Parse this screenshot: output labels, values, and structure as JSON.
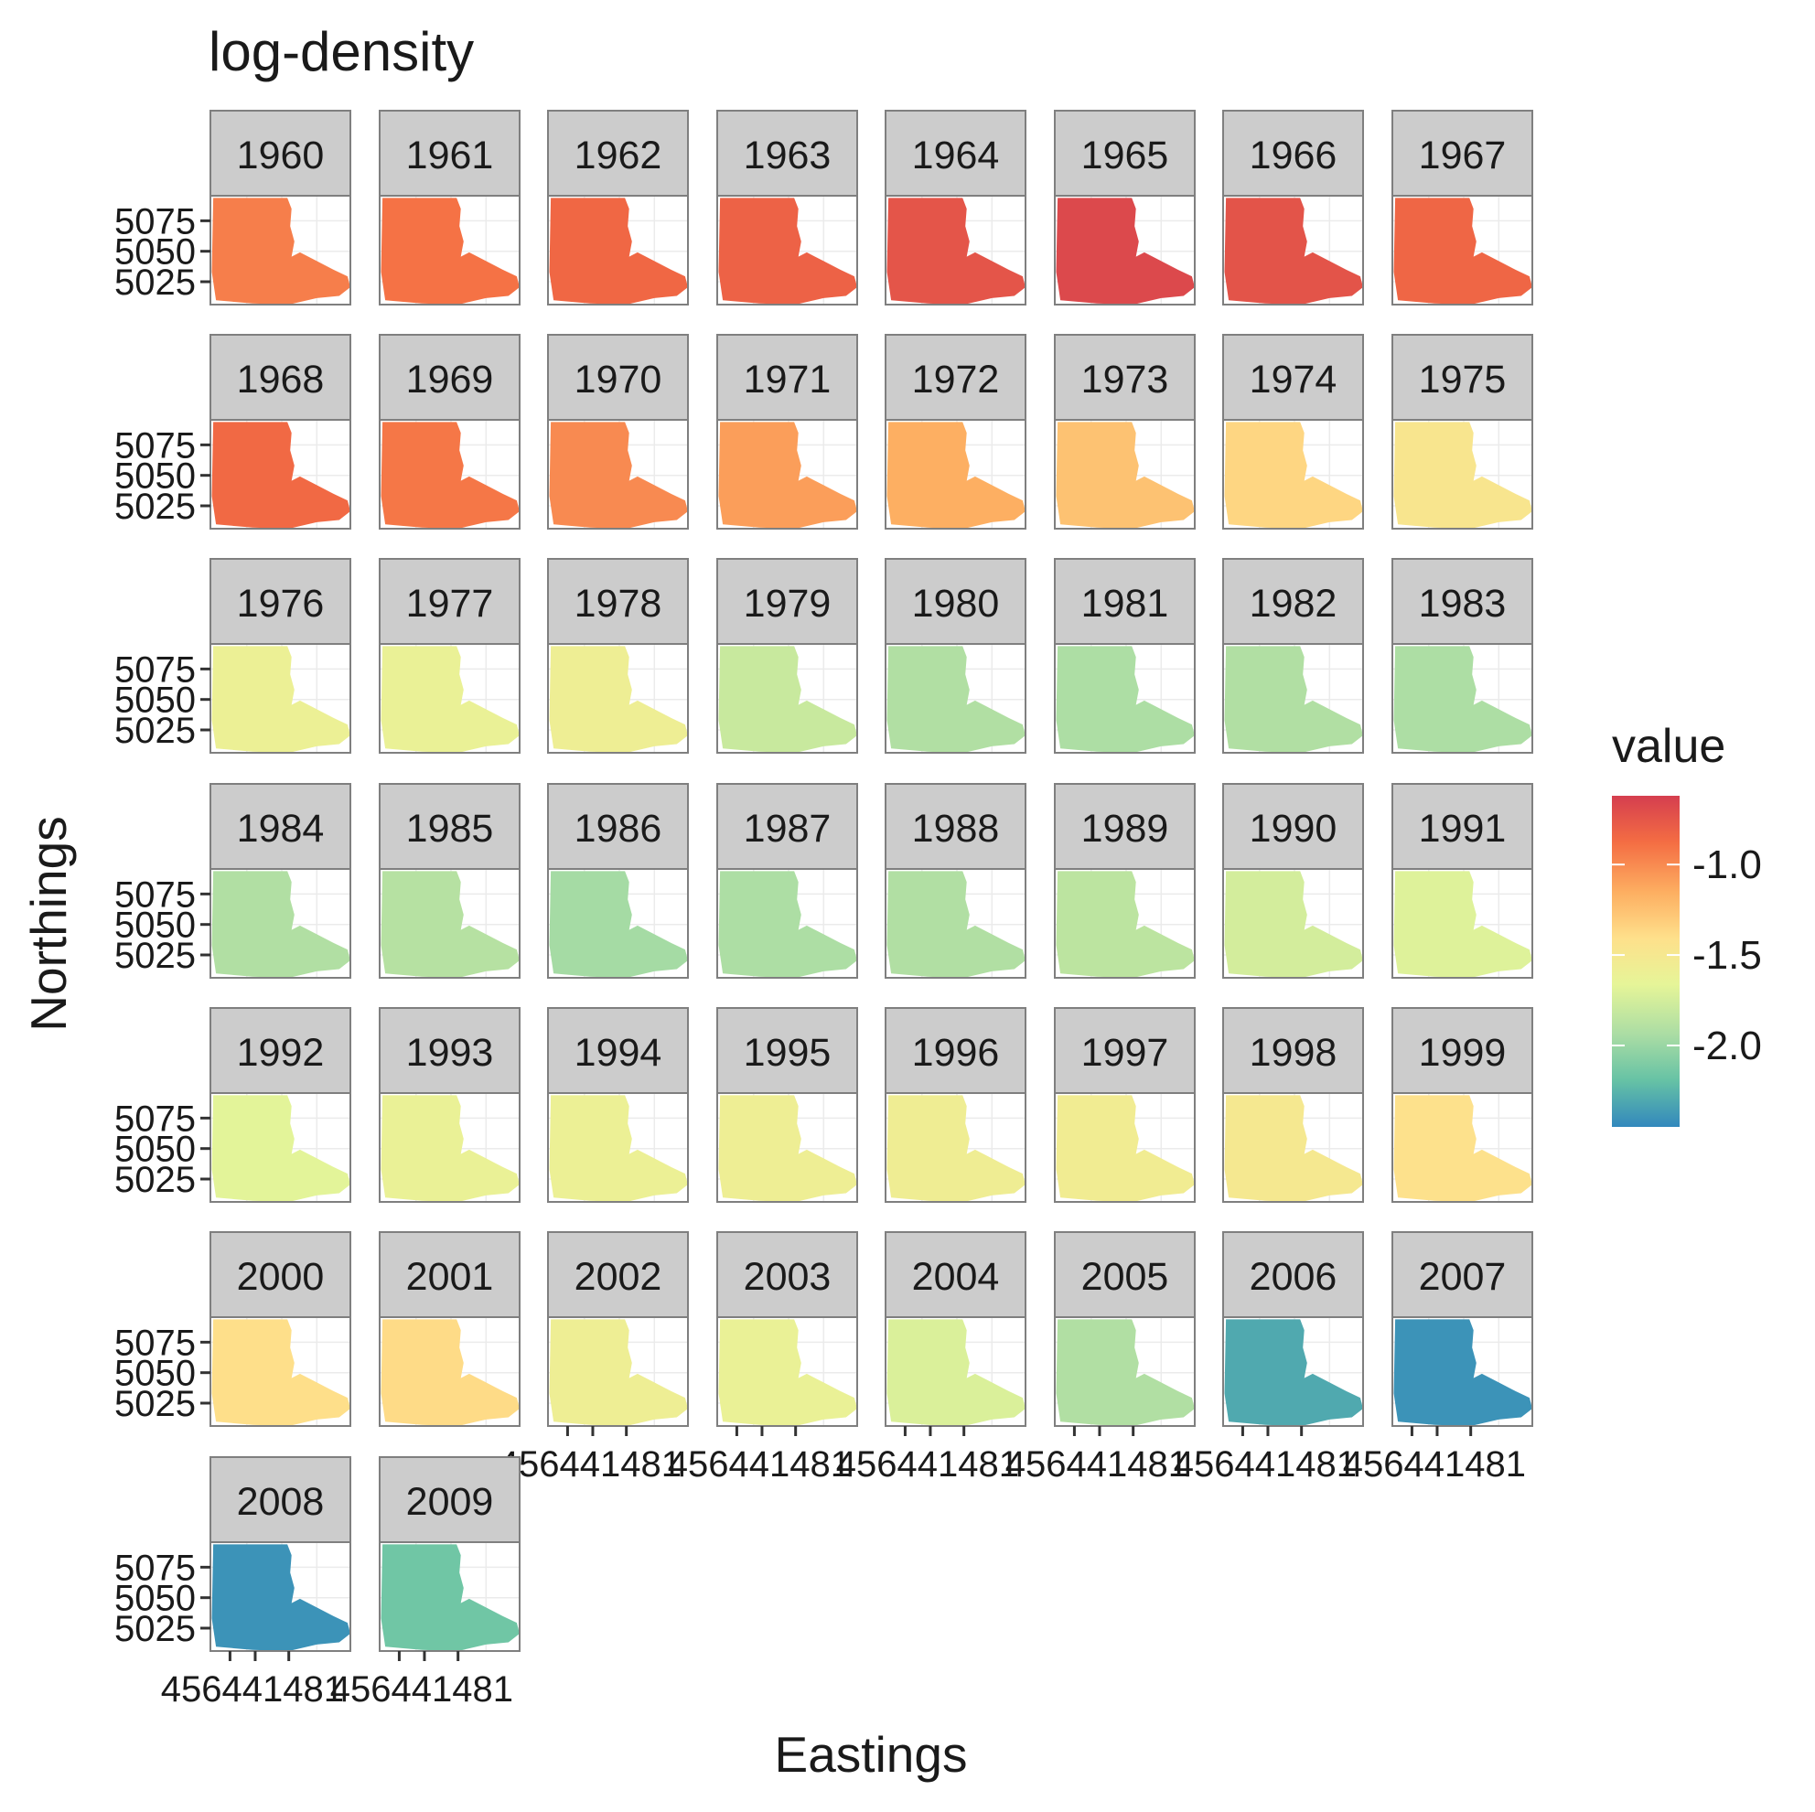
{
  "chart_data": {
    "type": "heatmap",
    "title": "log-density",
    "xlabel": "Eastings",
    "ylabel": "Northings",
    "layout": "facet_wrap",
    "ncol": 8,
    "facets": [
      {
        "label": "1960",
        "value": -0.95
      },
      {
        "label": "1961",
        "value": -0.9
      },
      {
        "label": "1962",
        "value": -0.85
      },
      {
        "label": "1963",
        "value": -0.82
      },
      {
        "label": "1964",
        "value": -0.75
      },
      {
        "label": "1965",
        "value": -0.68
      },
      {
        "label": "1966",
        "value": -0.74
      },
      {
        "label": "1967",
        "value": -0.84
      },
      {
        "label": "1968",
        "value": -0.86
      },
      {
        "label": "1969",
        "value": -0.92
      },
      {
        "label": "1970",
        "value": -1.0
      },
      {
        "label": "1971",
        "value": -1.08
      },
      {
        "label": "1972",
        "value": -1.15
      },
      {
        "label": "1973",
        "value": -1.25
      },
      {
        "label": "1974",
        "value": -1.35
      },
      {
        "label": "1975",
        "value": -1.47
      },
      {
        "label": "1976",
        "value": -1.6
      },
      {
        "label": "1977",
        "value": -1.62
      },
      {
        "label": "1978",
        "value": -1.58
      },
      {
        "label": "1979",
        "value": -1.8
      },
      {
        "label": "1980",
        "value": -1.9
      },
      {
        "label": "1981",
        "value": -1.92
      },
      {
        "label": "1982",
        "value": -1.9
      },
      {
        "label": "1983",
        "value": -1.92
      },
      {
        "label": "1984",
        "value": -1.9
      },
      {
        "label": "1985",
        "value": -1.88
      },
      {
        "label": "1986",
        "value": -1.95
      },
      {
        "label": "1987",
        "value": -1.92
      },
      {
        "label": "1988",
        "value": -1.9
      },
      {
        "label": "1989",
        "value": -1.85
      },
      {
        "label": "1990",
        "value": -1.75
      },
      {
        "label": "1991",
        "value": -1.7
      },
      {
        "label": "1992",
        "value": -1.68
      },
      {
        "label": "1993",
        "value": -1.62
      },
      {
        "label": "1994",
        "value": -1.6
      },
      {
        "label": "1995",
        "value": -1.58
      },
      {
        "label": "1996",
        "value": -1.57
      },
      {
        "label": "1997",
        "value": -1.55
      },
      {
        "label": "1998",
        "value": -1.5
      },
      {
        "label": "1999",
        "value": -1.42
      },
      {
        "label": "2000",
        "value": -1.4
      },
      {
        "label": "2001",
        "value": -1.38
      },
      {
        "label": "2002",
        "value": -1.58
      },
      {
        "label": "2003",
        "value": -1.62
      },
      {
        "label": "2004",
        "value": -1.72
      },
      {
        "label": "2005",
        "value": -1.9
      },
      {
        "label": "2006",
        "value": -2.3
      },
      {
        "label": "2007",
        "value": -2.4
      },
      {
        "label": "2008",
        "value": -2.4
      },
      {
        "label": "2009",
        "value": -2.15
      }
    ],
    "y_ticks": [
      "5075",
      "5050",
      "5025"
    ],
    "x_tick_label_text": "456441481",
    "legend": {
      "title": "value",
      "position": "right",
      "range": [
        -2.45,
        -0.62
      ],
      "ticks": [
        {
          "value": -1.0,
          "label": "-1.0"
        },
        {
          "value": -1.5,
          "label": "-1.5"
        },
        {
          "value": -2.0,
          "label": "-2.0"
        }
      ],
      "palette": [
        "#3288bd",
        "#66c2a5",
        "#abdda4",
        "#e6f598",
        "#fee08b",
        "#fdae61",
        "#f46d43",
        "#d53e4f"
      ]
    },
    "grid": true
  }
}
